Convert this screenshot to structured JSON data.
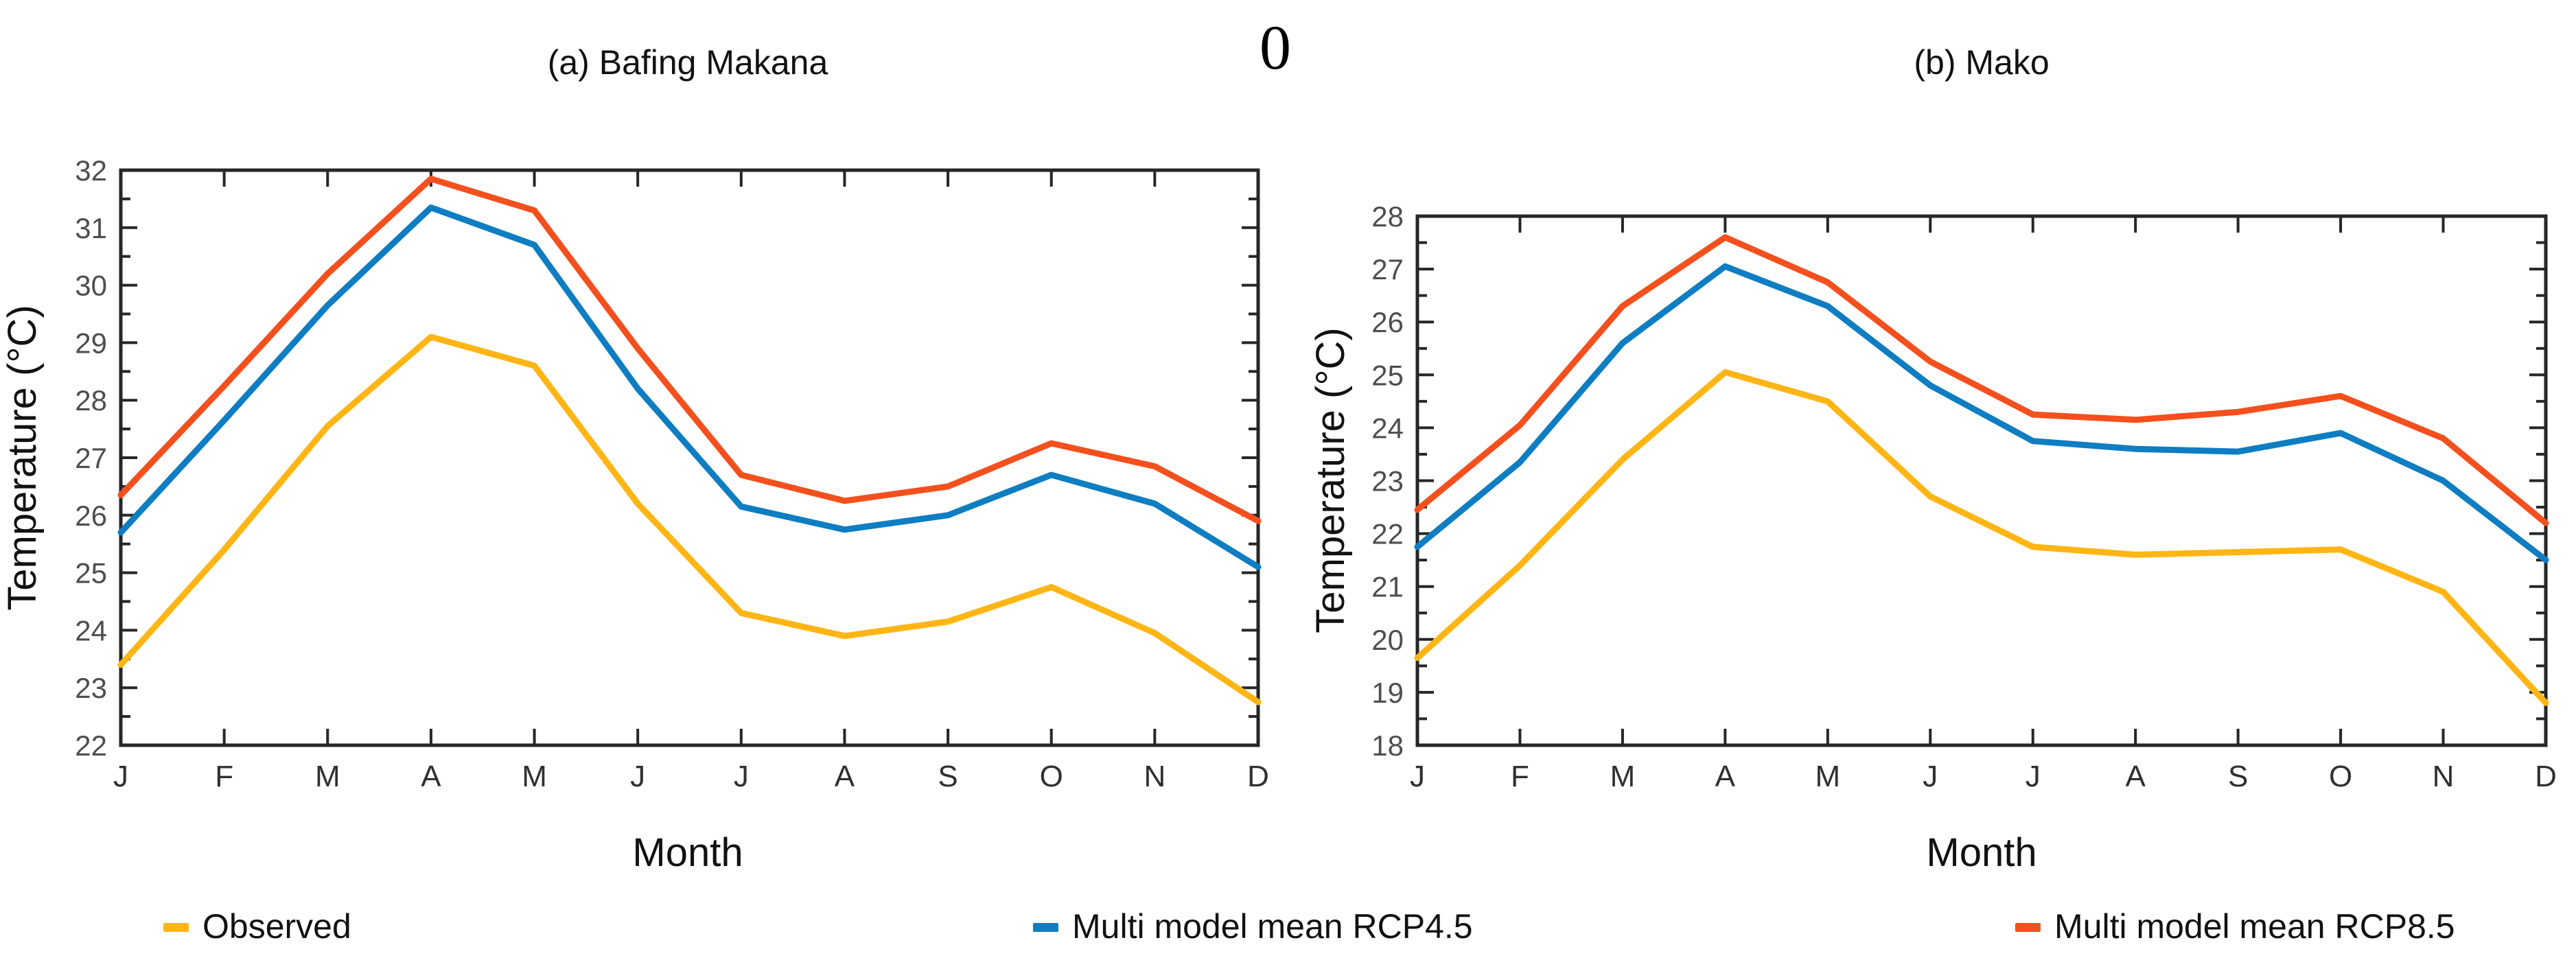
{
  "page": {
    "artifact_zero": "0"
  },
  "legend": [
    {
      "key": "observed",
      "label": "Observed",
      "color": "#FFB514"
    },
    {
      "key": "rcp45",
      "label": "Multi model mean RCP4.5",
      "color": "#0E7DC2"
    },
    {
      "key": "rcp85",
      "label": "Multi model mean RCP8.5",
      "color": "#F4501E"
    }
  ],
  "chart_data": [
    {
      "type": "line",
      "title": "(a) Bafing Makana",
      "xlabel": "Month",
      "ylabel": "Temperature (°C)",
      "x_tick_labels": [
        "J",
        "F",
        "M",
        "A",
        "M",
        "J",
        "J",
        "A",
        "S",
        "O",
        "N",
        "D"
      ],
      "ylim": [
        22,
        32
      ],
      "y_major_step": 1,
      "y_minor_step": 0.5,
      "grid": false,
      "legend_position": "bottom",
      "series": [
        {
          "key": "observed",
          "name": "Observed",
          "color": "#FFB514",
          "values": [
            23.4,
            25.4,
            27.55,
            29.1,
            28.6,
            26.2,
            24.3,
            23.9,
            24.15,
            24.75,
            23.95,
            22.75
          ]
        },
        {
          "key": "rcp45",
          "name": "Multi model mean RCP4.5",
          "color": "#0E7DC2",
          "values": [
            25.7,
            27.65,
            29.65,
            31.35,
            30.7,
            28.2,
            26.15,
            25.75,
            26.0,
            26.7,
            26.2,
            25.1
          ]
        },
        {
          "key": "rcp85",
          "name": "Multi model mean RCP8.5",
          "color": "#F4501E",
          "values": [
            26.35,
            28.25,
            30.2,
            31.85,
            31.3,
            28.9,
            26.7,
            26.25,
            26.5,
            27.25,
            26.85,
            25.9
          ]
        }
      ]
    },
    {
      "type": "line",
      "title": "(b) Mako",
      "xlabel": "Month",
      "ylabel": "Temperature (°C)",
      "x_tick_labels": [
        "J",
        "F",
        "M",
        "A",
        "M",
        "J",
        "J",
        "A",
        "S",
        "O",
        "N",
        "D"
      ],
      "ylim": [
        18,
        28
      ],
      "y_major_step": 1,
      "y_minor_step": 0.5,
      "grid": false,
      "legend_position": "bottom",
      "series": [
        {
          "key": "observed",
          "name": "Observed",
          "color": "#FFB514",
          "values": [
            19.65,
            21.4,
            23.4,
            25.05,
            24.5,
            22.7,
            21.75,
            21.6,
            21.65,
            21.7,
            20.9,
            18.8
          ]
        },
        {
          "key": "rcp45",
          "name": "Multi model mean RCP4.5",
          "color": "#0E7DC2",
          "values": [
            21.75,
            23.35,
            25.6,
            27.05,
            26.3,
            24.8,
            23.75,
            23.6,
            23.55,
            23.9,
            23.0,
            21.5
          ]
        },
        {
          "key": "rcp85",
          "name": "Multi model mean RCP8.5",
          "color": "#F4501E",
          "values": [
            22.45,
            24.05,
            26.3,
            27.6,
            26.75,
            25.25,
            24.25,
            24.15,
            24.3,
            24.6,
            23.8,
            22.2
          ]
        }
      ]
    }
  ]
}
